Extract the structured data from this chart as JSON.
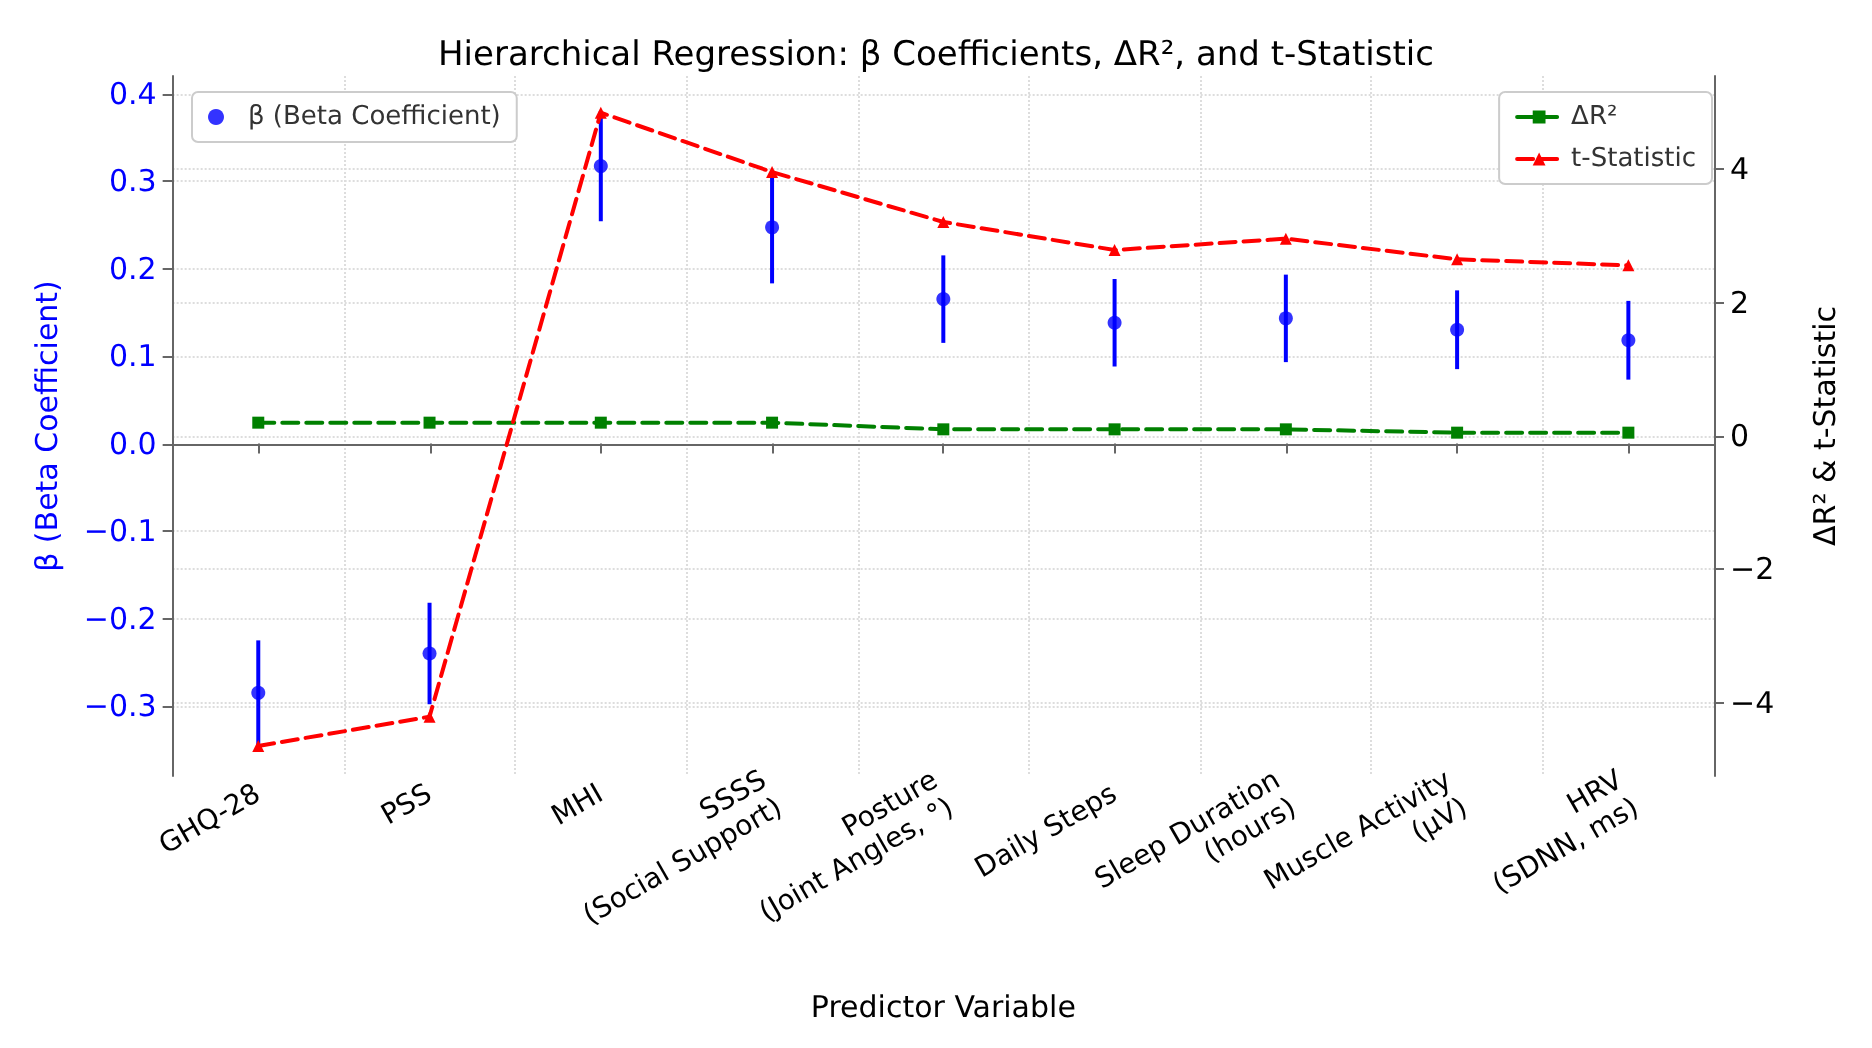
{
  "chart_data": {
    "type": "scatter",
    "title": "Hierarchical Regression: β Coefficients, ΔR², and t-Statistic",
    "xlabel": "Predictor Variable",
    "ylabel": "β (Beta Coefficient)",
    "y2label": "ΔR² & t-Statistic",
    "categories": [
      "GHQ-28",
      "PSS",
      "MHI",
      "SSSS\n(Social Support)",
      "Posture\n(Joint Angles, °)",
      "Daily Steps",
      "Sleep Duration\n(hours)",
      "Muscle Activity\n(μV)",
      "HRV\n(SDNN, ms)"
    ],
    "series": [
      {
        "name": "β (Beta Coefficient)",
        "color": "#0000ff",
        "marker": "circle",
        "values": [
          -0.285,
          -0.24,
          0.317,
          0.247,
          0.165,
          0.138,
          0.143,
          0.13,
          0.118
        ],
        "errors": [
          0.06,
          0.058,
          0.063,
          0.064,
          0.05,
          0.05,
          0.05,
          0.045,
          0.045
        ]
      },
      {
        "name": "ΔR²",
        "type": "line",
        "axis": "y2",
        "color": "#008000",
        "marker": "square",
        "line_style": "dashed",
        "values": [
          0.2,
          0.2,
          0.2,
          0.2,
          0.1,
          0.1,
          0.1,
          0.05,
          0.05
        ]
      },
      {
        "name": "t-Statistic",
        "type": "line",
        "axis": "y2",
        "color": "#ff0000",
        "marker": "triangle",
        "line_style": "dashed",
        "values": [
          -4.65,
          -4.21,
          4.85,
          3.96,
          3.21,
          2.79,
          2.96,
          2.65,
          2.56
        ]
      }
    ],
    "ylim": [
      -0.38,
      0.42
    ],
    "yticks": [
      -0.3,
      -0.2,
      -0.1,
      {
        "value": 0,
        "label": "0.0"
      },
      0.1,
      0.2,
      0.3,
      0.4
    ],
    "y2lim": [
      -5.1,
      5.4
    ],
    "y2ticks": [
      -4,
      -2,
      0,
      2,
      4
    ],
    "grid": true,
    "legend": "top"
  }
}
